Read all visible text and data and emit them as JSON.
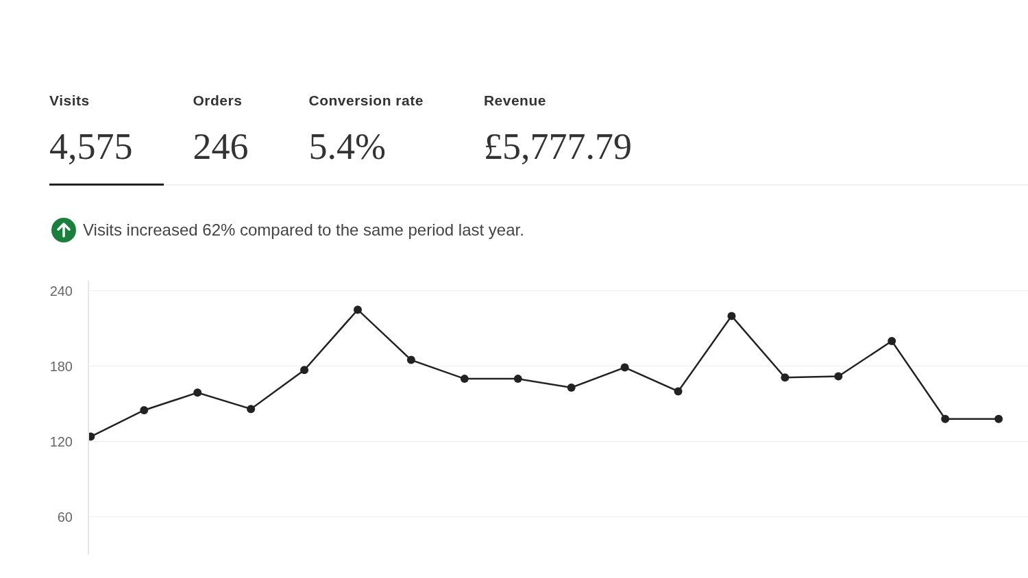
{
  "chart_data": {
    "type": "line",
    "annotations": [
      "Visits",
      "4,575",
      "Orders",
      "246",
      "Conversion rate",
      "5.4%",
      "Revenue",
      "£5,777.79",
      "Visits increased 62% compared to the same period last year."
    ],
    "categories": [
      null,
      null,
      null,
      null,
      null,
      null,
      null,
      null,
      null,
      null,
      null,
      null,
      null,
      null,
      null,
      null,
      null,
      null
    ],
    "series": [
      {
        "color": "#222222",
        "values": [
          124,
          145,
          159,
          146,
          177,
          225,
          185,
          170,
          170,
          163,
          179,
          160,
          220,
          171,
          172,
          200,
          138,
          138
        ]
      }
    ],
    "ylim": [
      30,
      248
    ],
    "yticks": [
      60,
      120,
      180,
      240
    ],
    "grid": "y",
    "tick_labels": "y",
    "marker": "circle",
    "line_style": "solid"
  }
}
